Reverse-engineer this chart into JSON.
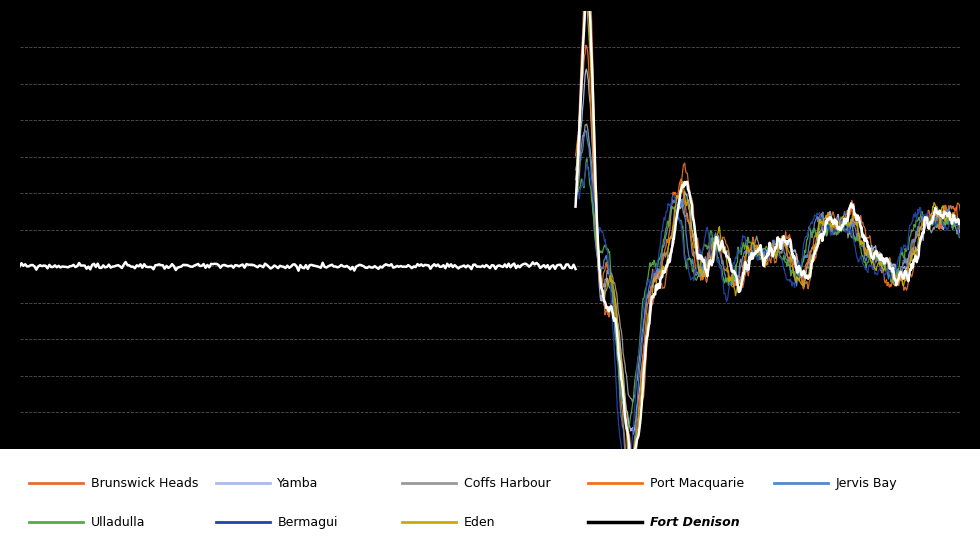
{
  "background_color": "#000000",
  "plot_bg_color": "#000000",
  "legend_bg_color": "#ffffff",
  "grid_color": "#888888",
  "grid_style": "--",
  "ylim": [
    -500,
    700
  ],
  "xlim": [
    0,
    110
  ],
  "other_start_x": 65,
  "colors": {
    "Brunswick Heads": "#E07030",
    "Yamba": "#AABDE8",
    "Coffs Harbour": "#999999",
    "Port Macquarie": "#F07020",
    "Jervis Bay": "#5588CC",
    "Ulladulla": "#55AA44",
    "Bermagui": "#2244AA",
    "Eden": "#CCAA00",
    "Fort Denison": "#000000"
  },
  "legend_row1": [
    "Brunswick Heads",
    "Yamba",
    "Coffs Harbour",
    "Port Macquarie",
    "Jervis Bay"
  ],
  "legend_row2": [
    "Ulladulla",
    "Bermagui",
    "Eden",
    "Fort Denison"
  ],
  "fort_linewidth": 1.8,
  "other_linewidth": 0.9
}
